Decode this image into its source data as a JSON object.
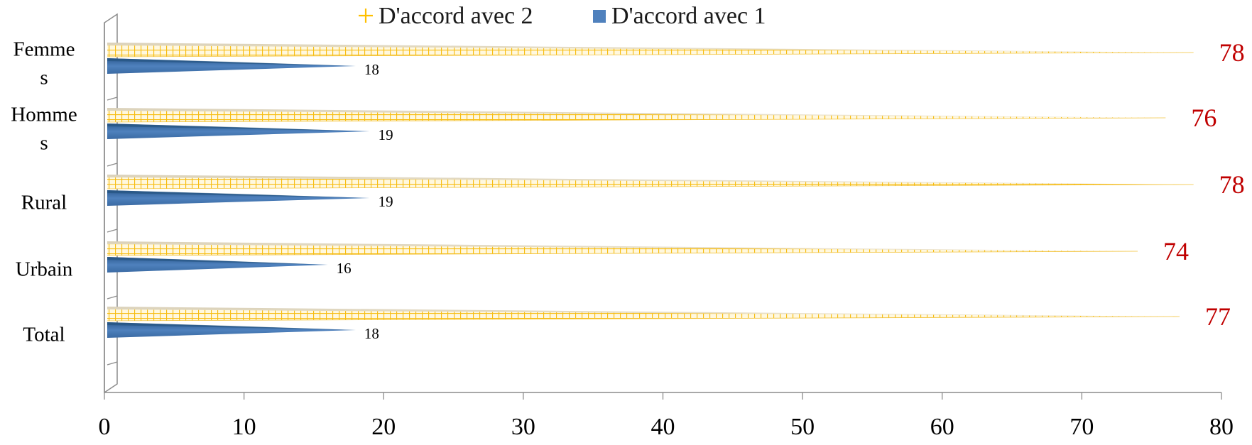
{
  "chart_data": {
    "type": "bar",
    "orientation": "horizontal",
    "title": "",
    "xlabel": "",
    "ylabel": "",
    "categories": [
      "Femmes",
      "Hommes",
      "Rural",
      "Urbain",
      "Total"
    ],
    "category_label_lines": [
      [
        "Femme",
        "s"
      ],
      [
        "Homme",
        "s"
      ],
      [
        "Rural"
      ],
      [
        "Urbain"
      ],
      [
        "Total"
      ]
    ],
    "series": [
      {
        "name": "D'accord avec  1",
        "values": [
          18,
          19,
          19,
          16,
          18
        ],
        "color": "#4f81bd"
      },
      {
        "name": "D'accord avec  2",
        "values": [
          78,
          76,
          78,
          74,
          77
        ],
        "color": "#ffc000"
      }
    ],
    "xlim": [
      0,
      80
    ],
    "xticks": [
      0,
      10,
      20,
      30,
      40,
      50,
      60,
      70,
      80
    ],
    "grid": false,
    "legend_position": "top",
    "legend_order": [
      "D'accord avec  2",
      "D'accord avec  1"
    ],
    "value_label_colors": {
      "D'accord avec  1": "#000000",
      "D'accord avec  2": "#c00000"
    },
    "bar_style": "3d-cone"
  }
}
